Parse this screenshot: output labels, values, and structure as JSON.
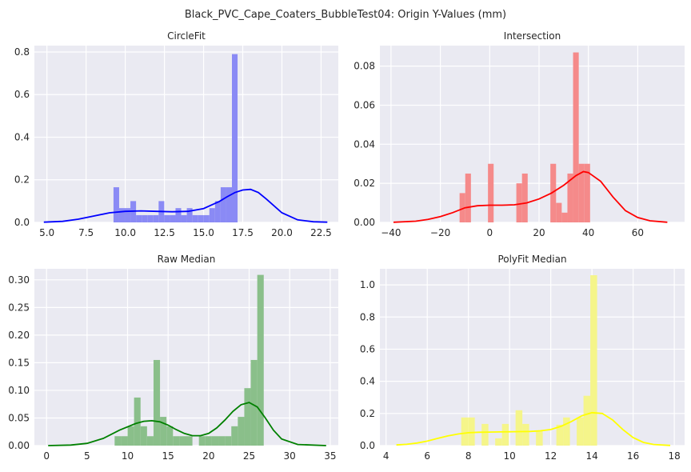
{
  "figure": {
    "title": "Black_PVC_Cape_Coaters_BubbleTest04: Origin Y-Values (mm)"
  },
  "style": {
    "background": "#EAEAF2",
    "grid": "#FFFFFF",
    "text": "#262626"
  },
  "chart_data": [
    {
      "type": "histogram+kde",
      "title": "CircleFit",
      "color": "#0000FF",
      "bar_color": "#8A8AF5",
      "xlim": [
        4.2,
        23.6
      ],
      "ylim": [
        0,
        0.83
      ],
      "xticks": [
        "5.0",
        "7.5",
        "10.0",
        "12.5",
        "15.0",
        "17.5",
        "20.0",
        "22.5"
      ],
      "xtick_values": [
        5,
        7.5,
        10,
        12.5,
        15,
        17.5,
        20,
        22.5
      ],
      "yticks": [
        "0.0",
        "0.2",
        "0.4",
        "0.6",
        "0.8"
      ],
      "ytick_values": [
        0,
        0.2,
        0.4,
        0.6,
        0.8
      ],
      "bins": {
        "start": 9.25,
        "width": 0.36
      },
      "values": [
        0.165,
        0.067,
        0.067,
        0.1,
        0.034,
        0.034,
        0.034,
        0.034,
        0.1,
        0.034,
        0.034,
        0.067,
        0.034,
        0.067,
        0.034,
        0.034,
        0.034,
        0.067,
        0.1,
        0.165,
        0.165,
        0.79
      ],
      "kde": {
        "x": [
          4.8,
          6,
          7,
          8,
          9,
          10,
          11,
          12,
          13,
          14,
          15,
          16,
          16.5,
          17,
          17.5,
          18,
          18.5,
          19,
          20,
          21,
          22,
          22.9
        ],
        "y": [
          0.001,
          0.005,
          0.015,
          0.03,
          0.045,
          0.052,
          0.054,
          0.052,
          0.05,
          0.052,
          0.065,
          0.098,
          0.12,
          0.14,
          0.152,
          0.155,
          0.14,
          0.11,
          0.045,
          0.012,
          0.003,
          0.001
        ]
      }
    },
    {
      "type": "histogram+kde",
      "title": "Intersection",
      "color": "#FF0000",
      "bar_color": "#F58A8A",
      "xlim": [
        -44.5,
        79
      ],
      "ylim": [
        0,
        0.0905
      ],
      "xticks": [
        "−40",
        "−20",
        "0",
        "20",
        "40",
        "60"
      ],
      "xtick_values": [
        -40,
        -20,
        0,
        20,
        40,
        60
      ],
      "yticks": [
        "0.00",
        "0.02",
        "0.04",
        "0.06",
        "0.08"
      ],
      "ytick_values": [
        0,
        0.02,
        0.04,
        0.06,
        0.08
      ],
      "bins": {
        "start": -12.2,
        "width": 2.3
      },
      "values": [
        0.015,
        0.025,
        0,
        0,
        0,
        0.03,
        0,
        0,
        0,
        0,
        0.02,
        0.025,
        0,
        0,
        0,
        0,
        0.03,
        0.01,
        0.005,
        0.025,
        0.087,
        0.03,
        0.03
      ],
      "kde": {
        "x": [
          -39,
          -30,
          -25,
          -20,
          -15,
          -10,
          -5,
          0,
          5,
          10,
          15,
          20,
          25,
          30,
          35,
          38,
          40,
          45,
          50,
          55,
          60,
          65,
          72
        ],
        "y": [
          0.0001,
          0.0006,
          0.0015,
          0.003,
          0.005,
          0.0075,
          0.0085,
          0.0088,
          0.0088,
          0.009,
          0.01,
          0.012,
          0.015,
          0.019,
          0.024,
          0.026,
          0.0255,
          0.021,
          0.013,
          0.006,
          0.0025,
          0.0008,
          0.0001
        ]
      }
    },
    {
      "type": "histogram+kde",
      "title": "Raw Median",
      "color": "#008000",
      "bar_color": "#8ABF8A",
      "xlim": [
        -1.5,
        36
      ],
      "ylim": [
        0,
        0.32
      ],
      "xticks": [
        "0",
        "5",
        "10",
        "15",
        "20",
        "25",
        "30",
        "35"
      ],
      "xtick_values": [
        0,
        5,
        10,
        15,
        20,
        25,
        30,
        35
      ],
      "yticks": [
        "0.00",
        "0.05",
        "0.10",
        "0.15",
        "0.20",
        "0.25",
        "0.30"
      ],
      "ytick_values": [
        0,
        0.05,
        0.1,
        0.15,
        0.2,
        0.25,
        0.3
      ],
      "bins": {
        "start": 8.4,
        "width": 0.8
      },
      "values": [
        0.017,
        0.017,
        0.035,
        0.087,
        0.035,
        0.017,
        0.155,
        0.052,
        0.035,
        0.017,
        0.017,
        0.017,
        0,
        0.017,
        0.017,
        0.017,
        0.017,
        0.017,
        0.035,
        0.052,
        0.104,
        0.155,
        0.309
      ],
      "kde": {
        "x": [
          0.2,
          3,
          5,
          7,
          9,
          11,
          12,
          13,
          14,
          15,
          16,
          17,
          18,
          19,
          20,
          21,
          22,
          23,
          24,
          25,
          26,
          27,
          28,
          29,
          31,
          34.5
        ],
        "y": [
          0.0,
          0.001,
          0.004,
          0.013,
          0.028,
          0.04,
          0.044,
          0.045,
          0.043,
          0.037,
          0.029,
          0.022,
          0.018,
          0.018,
          0.022,
          0.032,
          0.046,
          0.062,
          0.074,
          0.078,
          0.07,
          0.05,
          0.028,
          0.012,
          0.002,
          0.0
        ]
      }
    },
    {
      "type": "histogram+kde",
      "title": "PolyFit Median",
      "color": "#FFFF00",
      "bar_color": "#F5F58A",
      "xlim": [
        3.7,
        18.5
      ],
      "ylim": [
        0,
        1.1
      ],
      "xticks": [
        "4",
        "6",
        "8",
        "10",
        "12",
        "14",
        "16",
        "18"
      ],
      "xtick_values": [
        4,
        6,
        8,
        10,
        12,
        14,
        16,
        18
      ],
      "yticks": [
        "0.0",
        "0.2",
        "0.4",
        "0.6",
        "0.8",
        "1.0"
      ],
      "ytick_values": [
        0,
        0.2,
        0.4,
        0.6,
        0.8,
        1.0
      ],
      "bins": {
        "start": 7.65,
        "width": 0.33
      },
      "values": [
        0.175,
        0.175,
        0,
        0.135,
        0,
        0.045,
        0.135,
        0,
        0.22,
        0.135,
        0,
        0.09,
        0,
        0,
        0.13,
        0.175,
        0,
        0.175,
        0.31,
        1.06
      ],
      "kde": {
        "x": [
          4.5,
          5,
          5.5,
          6,
          6.5,
          7,
          7.5,
          8,
          8.5,
          9,
          9.5,
          10,
          10.5,
          11,
          11.5,
          12,
          12.5,
          13,
          13.5,
          14,
          14.5,
          15,
          15.5,
          16,
          16.5,
          17,
          17.8
        ],
        "y": [
          0.004,
          0.008,
          0.016,
          0.028,
          0.045,
          0.06,
          0.072,
          0.08,
          0.083,
          0.084,
          0.085,
          0.086,
          0.087,
          0.088,
          0.092,
          0.1,
          0.12,
          0.15,
          0.185,
          0.205,
          0.2,
          0.16,
          0.1,
          0.05,
          0.02,
          0.007,
          0.001
        ]
      }
    }
  ]
}
